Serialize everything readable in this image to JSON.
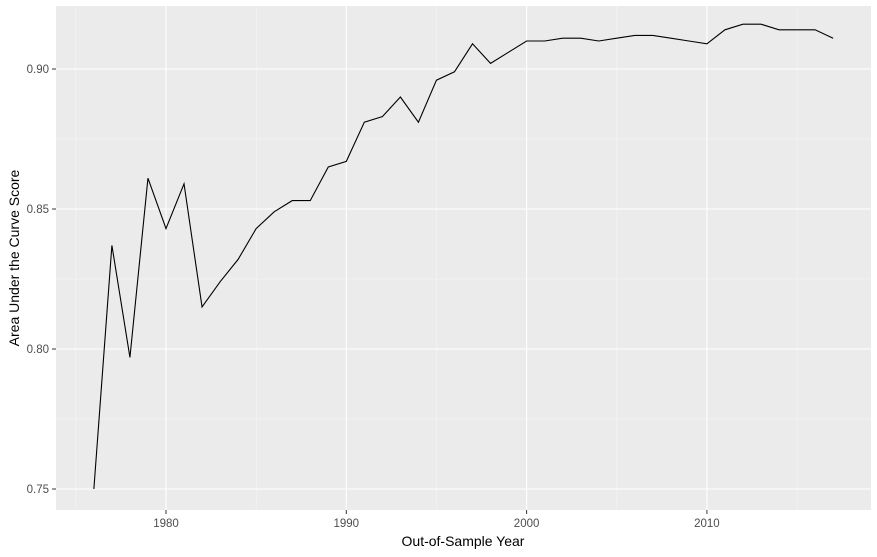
{
  "chart_data": {
    "type": "line",
    "title": "",
    "xlabel": "Out-of-Sample Year",
    "ylabel": "Area Under the Curve Score",
    "xlim": [
      1973.9,
      1819.1
    ],
    "ylim": [
      0.7425,
      0.9225
    ],
    "grid": true,
    "legend": "none",
    "x_ticks": [
      1980,
      1990,
      2000,
      2010
    ],
    "x_tick_labels": [
      "1980",
      "1990",
      "2000",
      "2010"
    ],
    "y_ticks": [
      0.75,
      0.8,
      0.85,
      0.9
    ],
    "y_tick_labels": [
      "0.75",
      "0.80",
      "0.85",
      "0.90"
    ],
    "series": [
      {
        "x": [
          1976,
          1977,
          1978,
          1979,
          1980,
          1981,
          1982,
          1983,
          1984,
          1985,
          1986,
          1987,
          1988,
          1989,
          1990,
          1991,
          1992,
          1993,
          1994,
          1995,
          1996,
          1997,
          1998,
          1999,
          2000,
          2001,
          2002,
          2003,
          2004,
          2005,
          2006,
          2007,
          2008,
          2009,
          2010,
          2011,
          2012,
          2013,
          2014,
          2015,
          2016,
          2017
        ],
        "values": [
          0.75,
          0.837,
          0.797,
          0.861,
          0.843,
          0.859,
          0.815,
          0.824,
          0.832,
          0.843,
          0.849,
          0.853,
          0.853,
          0.865,
          0.867,
          0.881,
          0.883,
          0.89,
          0.881,
          0.896,
          0.899,
          0.909,
          0.902,
          0.906,
          0.91,
          0.91,
          0.911,
          0.911,
          0.91,
          0.911,
          0.912,
          0.912,
          0.911,
          0.91,
          0.909,
          0.914,
          0.916,
          0.916,
          0.914,
          0.914,
          0.914,
          0.911
        ]
      }
    ],
    "colors": {
      "panel": "#ebebeb",
      "grid_major": "#ffffff",
      "grid_minor": "#f5f5f5",
      "line": "#000000",
      "tick": "#333333",
      "tick_text": "#4d4d4d"
    }
  }
}
